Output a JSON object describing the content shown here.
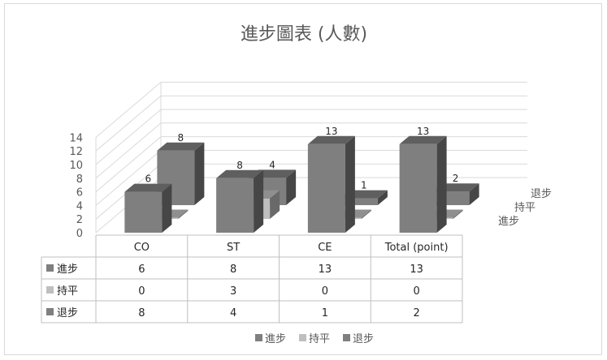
{
  "chart_data": {
    "type": "bar",
    "title": "進步圖表 (人數)",
    "categories": [
      "CO",
      "ST",
      "CE",
      "Total (point)"
    ],
    "series": [
      {
        "name": "進步",
        "values": [
          6,
          8,
          13,
          13
        ],
        "color": "#7f7f7f"
      },
      {
        "name": "持平",
        "values": [
          0,
          3,
          0,
          0
        ],
        "color": "#bfbfbf"
      },
      {
        "name": "退步",
        "values": [
          8,
          4,
          1,
          2
        ],
        "color": "#7f7f7f"
      }
    ],
    "y_ticks": [
      "0",
      "2",
      "4",
      "6",
      "8",
      "10",
      "12",
      "14"
    ],
    "ylim": [
      0,
      14
    ],
    "depth_axis_labels": [
      "進步",
      "持平",
      "退步"
    ],
    "data_table": true,
    "legend_position": "bottom",
    "grid": true
  }
}
